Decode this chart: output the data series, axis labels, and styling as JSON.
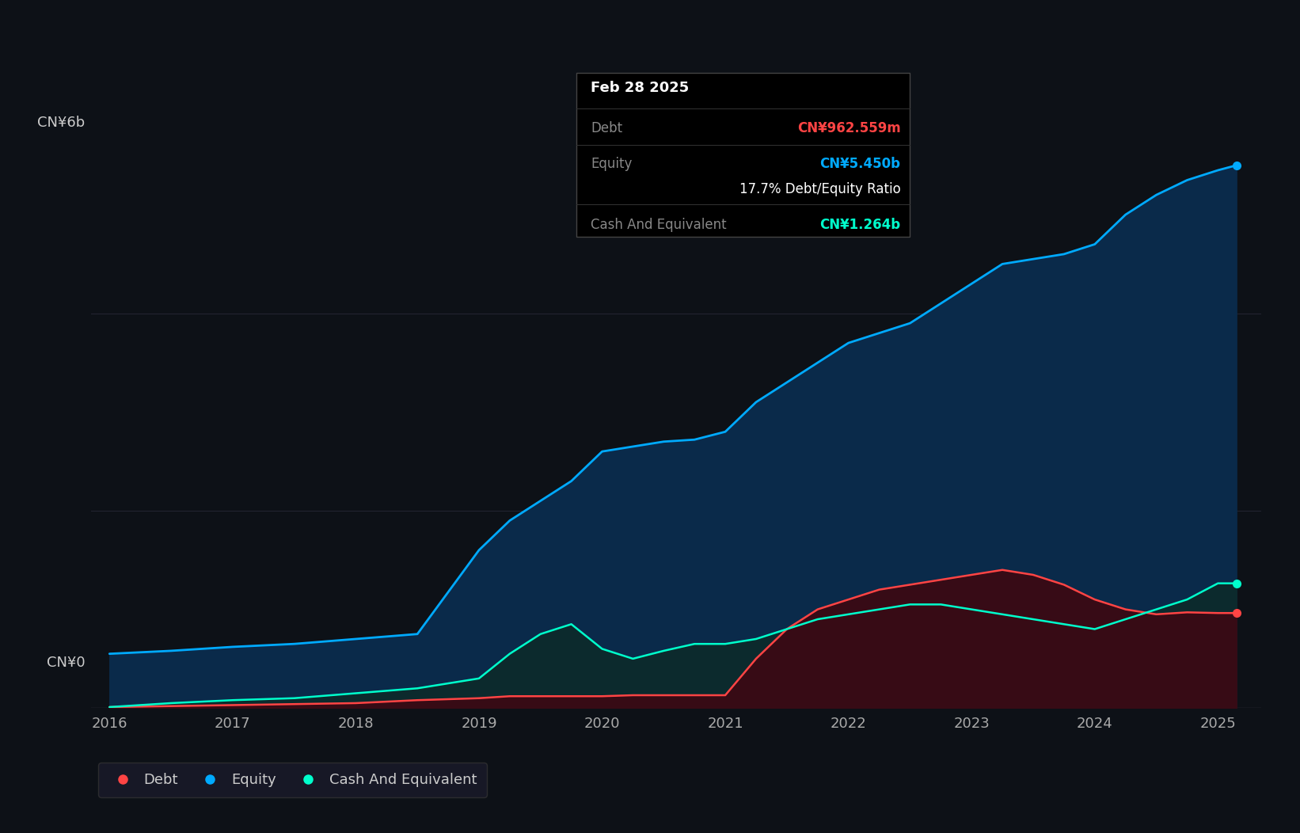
{
  "bg_color": "#0d1117",
  "plot_bg_color": "#0d1117",
  "grid_color": "#2a2a3a",
  "equity_color": "#00aaff",
  "equity_fill_color": "#0a2a4a",
  "debt_color": "#ff4444",
  "debt_fill_color": "#3a0a14",
  "cash_color": "#00ffcc",
  "cash_fill_color": "#0d2a2a",
  "tooltip_date": "Feb 28 2025",
  "tooltip_debt_label": "Debt",
  "tooltip_debt_value": "CN¥962.559m",
  "tooltip_debt_color": "#ff4444",
  "tooltip_equity_label": "Equity",
  "tooltip_equity_value": "CN¥5.450b",
  "tooltip_equity_color": "#00aaff",
  "tooltip_ratio": "17.7% Debt/Equity Ratio",
  "tooltip_cash_label": "Cash And Equivalent",
  "tooltip_cash_value": "CN¥1.264b",
  "tooltip_cash_color": "#00ffcc",
  "legend_debt": "Debt",
  "legend_equity": "Equity",
  "legend_cash": "Cash And Equivalent",
  "xlabel_years": [
    "2016",
    "2017",
    "2018",
    "2019",
    "2020",
    "2021",
    "2022",
    "2023",
    "2024",
    "2025"
  ],
  "time_points": [
    2016.0,
    2016.5,
    2017.0,
    2017.5,
    2018.0,
    2018.5,
    2019.0,
    2019.25,
    2019.5,
    2019.75,
    2020.0,
    2020.25,
    2020.5,
    2020.75,
    2021.0,
    2021.25,
    2021.5,
    2021.75,
    2022.0,
    2022.25,
    2022.5,
    2022.75,
    2023.0,
    2023.25,
    2023.5,
    2023.75,
    2024.0,
    2024.25,
    2024.5,
    2024.75,
    2025.0,
    2025.15
  ],
  "equity_values": [
    0.55,
    0.58,
    0.62,
    0.65,
    0.7,
    0.75,
    1.6,
    1.9,
    2.1,
    2.3,
    2.6,
    2.65,
    2.7,
    2.72,
    2.8,
    3.1,
    3.3,
    3.5,
    3.7,
    3.8,
    3.9,
    4.1,
    4.3,
    4.5,
    4.55,
    4.6,
    4.7,
    5.0,
    5.2,
    5.35,
    5.45,
    5.5
  ],
  "debt_values": [
    0.01,
    0.02,
    0.03,
    0.04,
    0.05,
    0.08,
    0.1,
    0.12,
    0.12,
    0.12,
    0.12,
    0.13,
    0.13,
    0.13,
    0.13,
    0.5,
    0.8,
    1.0,
    1.1,
    1.2,
    1.25,
    1.3,
    1.35,
    1.4,
    1.35,
    1.25,
    1.1,
    1.0,
    0.95,
    0.97,
    0.963,
    0.963
  ],
  "cash_values": [
    0.01,
    0.05,
    0.08,
    0.1,
    0.15,
    0.2,
    0.3,
    0.55,
    0.75,
    0.85,
    0.6,
    0.5,
    0.58,
    0.65,
    0.65,
    0.7,
    0.8,
    0.9,
    0.95,
    1.0,
    1.05,
    1.05,
    1.0,
    0.95,
    0.9,
    0.85,
    0.8,
    0.9,
    1.0,
    1.1,
    1.264,
    1.264
  ],
  "ylim": [
    0,
    6.5
  ],
  "xlim": [
    2015.85,
    2025.35
  ]
}
